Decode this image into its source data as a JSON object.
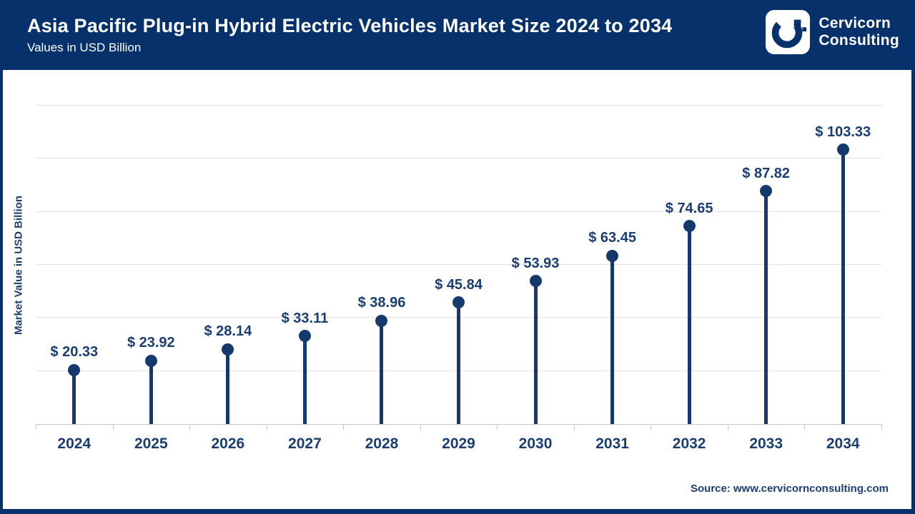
{
  "header": {
    "title": "Asia Pacific Plug-in Hybrid Electric Vehicles Market Size 2024 to 2034",
    "subtitle": "Values in USD Billion",
    "logo": {
      "line1": "Cervicorn",
      "line2": "Consulting"
    }
  },
  "chart_data": {
    "type": "lollipop",
    "title": "Asia Pacific Plug-in Hybrid Electric Vehicles Market Size 2024 to 2034",
    "subtitle": "Values in USD Billion",
    "categories": [
      "2024",
      "2025",
      "2026",
      "2027",
      "2028",
      "2029",
      "2030",
      "2031",
      "2032",
      "2033",
      "2034"
    ],
    "values": [
      20.33,
      23.92,
      28.14,
      33.11,
      38.96,
      45.84,
      53.93,
      63.45,
      74.65,
      87.82,
      103.33
    ],
    "labels": [
      "$ 20.33",
      "$ 23.92",
      "$ 28.14",
      "$ 33.11",
      "$ 38.96",
      "$ 45.84",
      "$ 53.93",
      "$ 63.45",
      "$ 74.65",
      "$ 87.82",
      "$ 103.33"
    ],
    "xlabel": "",
    "ylabel": "Market Value in USD Billion",
    "ylim": [
      0,
      120
    ],
    "gridline_step": 20,
    "grid": true,
    "legend": false
  },
  "footer": {
    "source": "Source: www.cervicornconsulting.com"
  },
  "colors": {
    "brand_navy": "#06316b",
    "data_navy": "#143a6d",
    "label_navy": "#1b3e70",
    "gridline": "#e2e2e2",
    "axis": "#c8c8c8",
    "background": "#ffffff"
  }
}
